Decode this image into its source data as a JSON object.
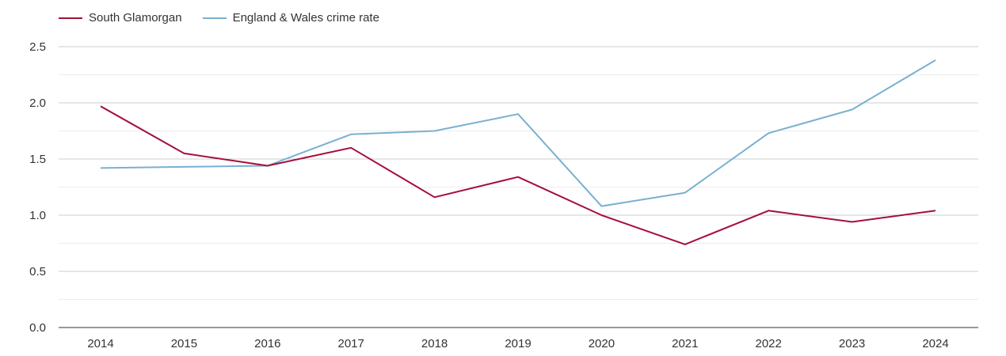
{
  "chart_data": {
    "type": "line",
    "categories": [
      "2014",
      "2015",
      "2016",
      "2017",
      "2018",
      "2019",
      "2020",
      "2021",
      "2022",
      "2023",
      "2024"
    ],
    "series": [
      {
        "name": "South Glamorgan",
        "color": "#a50f3a",
        "values": [
          1.97,
          1.55,
          1.44,
          1.6,
          1.16,
          1.34,
          1.0,
          0.74,
          1.04,
          0.94,
          1.04
        ]
      },
      {
        "name": "England & Wales crime rate",
        "color": "#79b0d0",
        "values": [
          1.42,
          1.43,
          1.44,
          1.72,
          1.75,
          1.9,
          1.08,
          1.2,
          1.73,
          1.94,
          2.38
        ]
      }
    ],
    "y_ticks": [
      "0.0",
      "0.5",
      "1.0",
      "1.5",
      "2.0",
      "2.5"
    ],
    "ylim": [
      0,
      2.5
    ],
    "grid": true,
    "legend_position": "top-left",
    "title": "",
    "xlabel": "",
    "ylabel": ""
  }
}
